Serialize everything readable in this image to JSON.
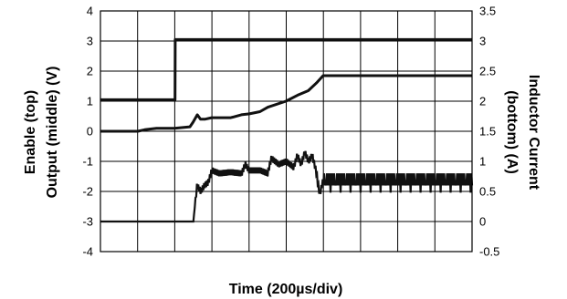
{
  "chart_data": {
    "type": "line",
    "title": "",
    "xlabel": "Time (200µs/div)",
    "ylabel_left": [
      "Enable (top)",
      "Output (middle) (V)"
    ],
    "ylabel_right": [
      "Inductor Current",
      "(bottom) (A)"
    ],
    "grid": true,
    "x_divisions": 10,
    "x_unit": "div",
    "xlim": [
      0,
      10
    ],
    "ylim_left": [
      -4,
      4
    ],
    "yticks_left": [
      "4",
      "3",
      "2",
      "1",
      "0",
      "-1",
      "-2",
      "-3",
      "-4"
    ],
    "ylim_right": [
      -0.5,
      3.5
    ],
    "yticks_right": [
      "3.5",
      "3",
      "2.5",
      "2",
      "1.5",
      "1",
      "0.5",
      "0",
      "-0.5"
    ],
    "series": [
      {
        "axis": "left",
        "x": [
          0,
          2.0,
          2.02,
          10
        ],
        "y": [
          1.05,
          1.05,
          3.05,
          3.05
        ]
      },
      {
        "axis": "left",
        "x": [
          0,
          1.0,
          1.2,
          1.5,
          2.0,
          2.4,
          2.5,
          2.6,
          2.7,
          2.8,
          3.0,
          3.5,
          3.8,
          4.0,
          4.3,
          4.5,
          5.0,
          5.3,
          5.6,
          5.8,
          6.0,
          10
        ],
        "y": [
          0.0,
          0.0,
          0.05,
          0.1,
          0.1,
          0.15,
          0.3,
          0.55,
          0.4,
          0.4,
          0.45,
          0.45,
          0.55,
          0.58,
          0.65,
          0.8,
          1.0,
          1.2,
          1.35,
          1.6,
          1.85,
          1.85
        ]
      },
      {
        "axis": "right",
        "x": [
          0,
          2.5,
          2.6,
          2.7,
          2.8,
          2.9,
          3.0,
          3.2,
          3.5,
          3.8,
          3.9,
          4.0,
          4.3,
          4.5,
          4.6,
          4.8,
          5.0,
          5.2,
          5.3,
          5.4,
          5.5,
          5.6,
          5.7,
          5.8,
          5.9,
          6.0,
          10
        ],
        "y": [
          0.0,
          0.0,
          0.6,
          0.5,
          0.6,
          0.65,
          0.85,
          0.8,
          0.82,
          0.8,
          0.95,
          0.85,
          0.85,
          0.8,
          1.05,
          0.95,
          1.0,
          0.9,
          1.1,
          0.95,
          1.15,
          1.0,
          1.1,
          0.85,
          0.45,
          0.7,
          0.7
        ]
      }
    ]
  }
}
